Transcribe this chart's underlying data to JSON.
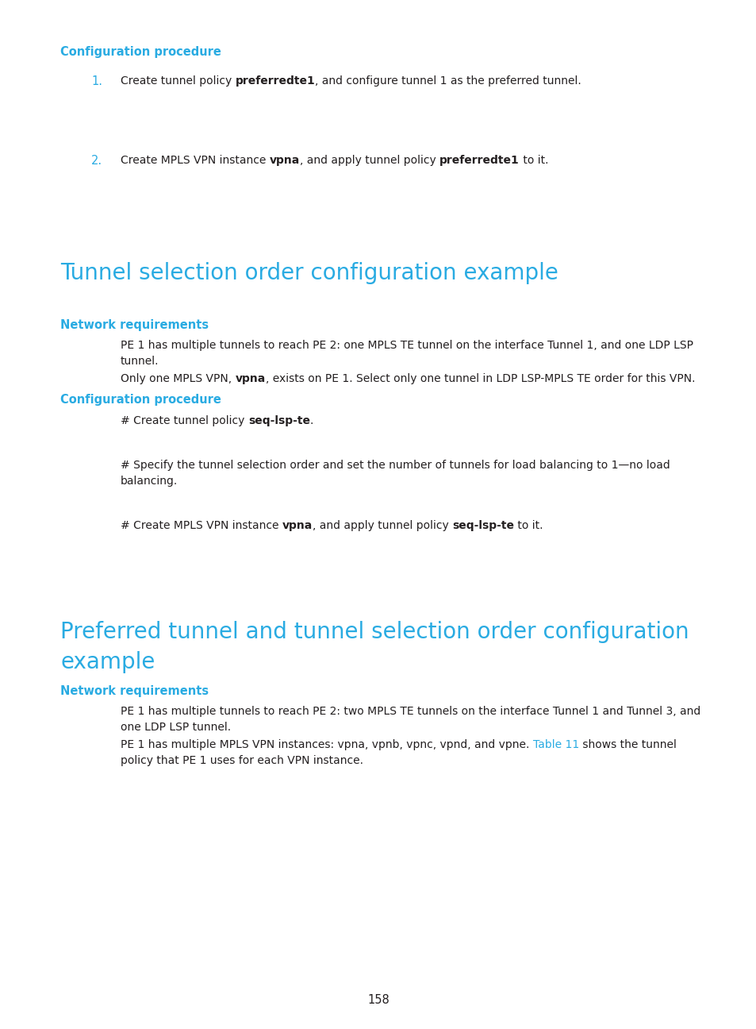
{
  "bg_color": "#ffffff",
  "cyan": "#29abe2",
  "black": "#231f20",
  "page_number": "158",
  "fig_width": 9.54,
  "fig_height": 12.96,
  "dpi": 100
}
